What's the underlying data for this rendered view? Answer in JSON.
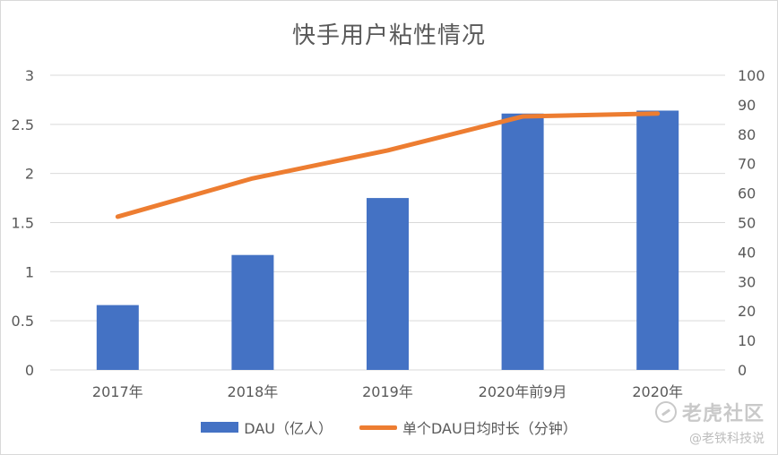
{
  "chart_data": {
    "type": "bar",
    "title": "快手用户粘性情况",
    "categories": [
      "2017年",
      "2018年",
      "2019年",
      "2020年前9月",
      "2020年"
    ],
    "series": [
      {
        "name": "DAU（亿人）",
        "type": "bar",
        "axis": "left",
        "color": "#4472c4",
        "values": [
          0.66,
          1.17,
          1.75,
          2.61,
          2.64
        ]
      },
      {
        "name": "单个DAU日均时长（分钟）",
        "type": "line",
        "axis": "right",
        "color": "#ed7d31",
        "values": [
          52,
          65,
          74.5,
          86,
          87
        ]
      }
    ],
    "y_left": {
      "ylim": [
        0,
        3
      ],
      "ticks": [
        "0",
        "0.5",
        "1",
        "1.5",
        "2",
        "2.5",
        "3"
      ]
    },
    "y_right": {
      "ylim": [
        0,
        100
      ],
      "ticks": [
        "0",
        "10",
        "20",
        "30",
        "40",
        "50",
        "60",
        "70",
        "80",
        "90",
        "100"
      ]
    },
    "grid": true,
    "legend_position": "bottom"
  },
  "watermark": {
    "brand": "老虎社区",
    "handle": "@老铁科技说"
  }
}
